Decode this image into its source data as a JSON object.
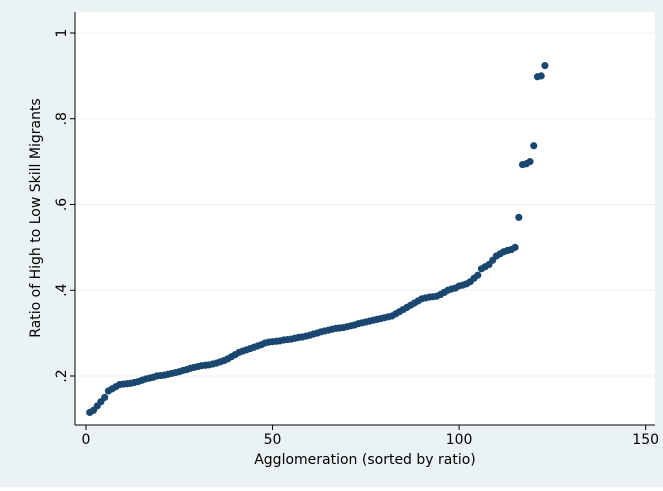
{
  "chart_data": {
    "type": "scatter",
    "x_label": "Agglomeration (sorted by ratio)",
    "y_label": "Ratio of High to Low Skill Migrants",
    "color": "#1a476f",
    "grid": true,
    "xlim": [
      -2.95,
      152.5
    ],
    "ylim": [
      0.0857,
      1.049
    ],
    "xticks": [
      0,
      50,
      100,
      150
    ],
    "yticks": [
      {
        "value": 0.2,
        "label": ".2"
      },
      {
        "value": 0.4,
        "label": ".4"
      },
      {
        "value": 0.6,
        "label": ".6"
      },
      {
        "value": 0.8,
        "label": ".8"
      },
      1
    ],
    "x": [
      1,
      2,
      3,
      4,
      5,
      6,
      7,
      8,
      9,
      10,
      11,
      12,
      13,
      14,
      15,
      16,
      17,
      18,
      19,
      20,
      21,
      22,
      23,
      24,
      25,
      26,
      27,
      28,
      29,
      30,
      31,
      32,
      33,
      34,
      35,
      36,
      37,
      38,
      39,
      40,
      41,
      42,
      43,
      44,
      45,
      46,
      47,
      48,
      49,
      50,
      51,
      52,
      53,
      54,
      55,
      56,
      57,
      58,
      59,
      60,
      61,
      62,
      63,
      64,
      65,
      66,
      67,
      68,
      69,
      70,
      71,
      72,
      73,
      74,
      75,
      76,
      77,
      78,
      79,
      80,
      81,
      82,
      83,
      84,
      85,
      86,
      87,
      88,
      89,
      90,
      91,
      92,
      93,
      94,
      95,
      96,
      97,
      98,
      99,
      100,
      101,
      102,
      103,
      104,
      105,
      106,
      107,
      108,
      109,
      110,
      111,
      112,
      113,
      114,
      115,
      116,
      117,
      118,
      119,
      120,
      121,
      122,
      123
    ],
    "y": [
      0.115,
      0.12,
      0.13,
      0.14,
      0.15,
      0.165,
      0.17,
      0.175,
      0.18,
      0.181,
      0.182,
      0.183,
      0.185,
      0.187,
      0.19,
      0.193,
      0.195,
      0.197,
      0.2,
      0.201,
      0.202,
      0.204,
      0.206,
      0.208,
      0.21,
      0.213,
      0.215,
      0.218,
      0.22,
      0.222,
      0.224,
      0.225,
      0.226,
      0.228,
      0.23,
      0.233,
      0.236,
      0.24,
      0.245,
      0.25,
      0.255,
      0.258,
      0.261,
      0.264,
      0.267,
      0.27,
      0.273,
      0.277,
      0.279,
      0.28,
      0.281,
      0.282,
      0.284,
      0.285,
      0.286,
      0.288,
      0.29,
      0.291,
      0.293,
      0.295,
      0.298,
      0.3,
      0.303,
      0.305,
      0.307,
      0.309,
      0.311,
      0.312,
      0.313,
      0.315,
      0.317,
      0.319,
      0.322,
      0.324,
      0.326,
      0.328,
      0.33,
      0.332,
      0.334,
      0.336,
      0.338,
      0.34,
      0.345,
      0.35,
      0.355,
      0.36,
      0.365,
      0.37,
      0.375,
      0.38,
      0.382,
      0.384,
      0.385,
      0.386,
      0.39,
      0.395,
      0.4,
      0.403,
      0.405,
      0.41,
      0.412,
      0.415,
      0.42,
      0.428,
      0.435,
      0.45,
      0.455,
      0.46,
      0.47,
      0.48,
      0.485,
      0.49,
      0.493,
      0.495,
      0.5,
      0.57,
      0.693,
      0.695,
      0.7,
      0.737,
      0.898,
      0.9,
      0.924
    ]
  }
}
